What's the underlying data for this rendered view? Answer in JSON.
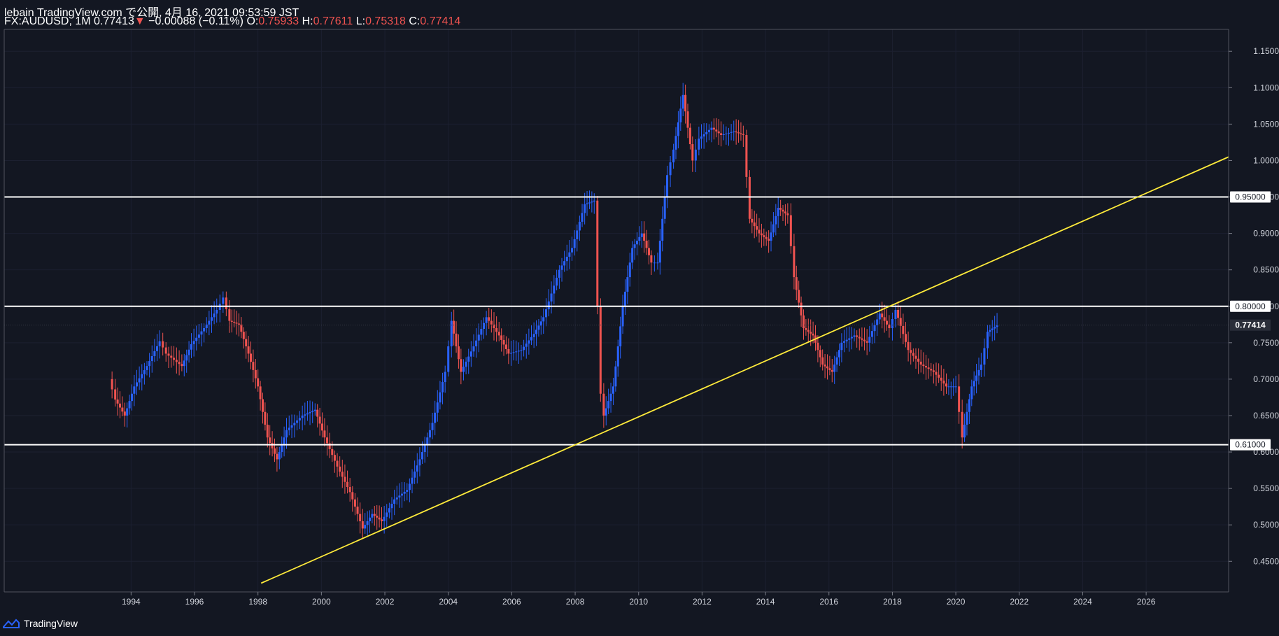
{
  "header": {
    "publisher": "lebain TradingView.com で公開, 4月 16, 2021 09:53:59 JST",
    "symbol": "FX:AUDUSD, 1M",
    "last": "0.77413",
    "change_arrow": "▼",
    "change": "−0.00088 (−0.11%)",
    "o_label": "O:",
    "o_value": "0.75933",
    "h_label": "H:",
    "h_value": "0.77611",
    "l_label": "L:",
    "l_value": "0.75318",
    "c_label": "C:",
    "c_value": "0.77414"
  },
  "footer": {
    "brand": "TradingView",
    "logo_icon": "tradingview-logo-icon"
  },
  "colors": {
    "background": "#131722",
    "up": "#2962ff",
    "down": "#ef5350",
    "axis_text": "#d1d4dc",
    "level_line": "#ffffff",
    "trend_line": "#ffeb3b"
  },
  "chart_data": {
    "type": "candlestick",
    "interval": "1M",
    "symbol": "FX:AUDUSD",
    "x_ticks": [
      "1994",
      "1996",
      "1998",
      "2000",
      "2002",
      "2004",
      "2006",
      "2008",
      "2010",
      "2012",
      "2014",
      "2016",
      "2018",
      "2020",
      "2022",
      "2024",
      "2026"
    ],
    "y_ticks": [
      "1.15000",
      "1.10000",
      "1.05000",
      "1.00000",
      "0.95000",
      "0.90000",
      "0.85000",
      "0.80000",
      "0.75000",
      "0.70000",
      "0.65000",
      "0.60000",
      "0.55000",
      "0.50000",
      "0.45000"
    ],
    "xlim": [
      1990.0,
      2028.6
    ],
    "ylim": [
      0.408,
      1.18
    ],
    "current_price_label": "0.77414",
    "current_price": 0.77414,
    "horizontal_levels": [
      {
        "value": 0.95,
        "label": "0.95000"
      },
      {
        "value": 0.8,
        "label": "0.80000"
      },
      {
        "value": 0.61,
        "label": "0.61000"
      }
    ],
    "trend_line": {
      "x1": 1998.1,
      "y1": 0.42,
      "x2": 2028.6,
      "y2": 1.005
    },
    "close_path": [
      [
        1993.3,
        0.7
      ],
      [
        1993.5,
        0.672
      ],
      [
        1993.8,
        0.65
      ],
      [
        1994.1,
        0.69
      ],
      [
        1994.5,
        0.718
      ],
      [
        1994.9,
        0.752
      ],
      [
        1995.1,
        0.735
      ],
      [
        1995.6,
        0.718
      ],
      [
        1995.9,
        0.748
      ],
      [
        1996.3,
        0.77
      ],
      [
        1996.7,
        0.795
      ],
      [
        1996.9,
        0.812
      ],
      [
        1997.1,
        0.78
      ],
      [
        1997.4,
        0.775
      ],
      [
        1997.7,
        0.735
      ],
      [
        1998.0,
        0.69
      ],
      [
        1998.3,
        0.62
      ],
      [
        1998.6,
        0.59
      ],
      [
        1998.9,
        0.63
      ],
      [
        1999.4,
        0.65
      ],
      [
        1999.8,
        0.658
      ],
      [
        2000.1,
        0.62
      ],
      [
        2000.5,
        0.58
      ],
      [
        2000.9,
        0.545
      ],
      [
        2001.3,
        0.495
      ],
      [
        2001.6,
        0.515
      ],
      [
        2001.9,
        0.505
      ],
      [
        2002.3,
        0.535
      ],
      [
        2002.7,
        0.548
      ],
      [
        2003.1,
        0.59
      ],
      [
        2003.5,
        0.64
      ],
      [
        2003.9,
        0.71
      ],
      [
        2004.1,
        0.78
      ],
      [
        2004.4,
        0.71
      ],
      [
        2004.8,
        0.745
      ],
      [
        2005.2,
        0.785
      ],
      [
        2005.6,
        0.76
      ],
      [
        2005.9,
        0.735
      ],
      [
        2006.3,
        0.74
      ],
      [
        2006.7,
        0.762
      ],
      [
        2007.0,
        0.785
      ],
      [
        2007.5,
        0.85
      ],
      [
        2007.9,
        0.88
      ],
      [
        2008.3,
        0.94
      ],
      [
        2008.6,
        0.945
      ],
      [
        2008.7,
        0.8
      ],
      [
        2008.8,
        0.68
      ],
      [
        2008.9,
        0.65
      ],
      [
        2009.2,
        0.69
      ],
      [
        2009.5,
        0.8
      ],
      [
        2009.8,
        0.88
      ],
      [
        2010.1,
        0.9
      ],
      [
        2010.4,
        0.86
      ],
      [
        2010.6,
        0.86
      ],
      [
        2010.9,
        0.98
      ],
      [
        2011.1,
        1.015
      ],
      [
        2011.4,
        1.09
      ],
      [
        2011.7,
        1.0
      ],
      [
        2011.9,
        1.03
      ],
      [
        2012.3,
        1.045
      ],
      [
        2012.6,
        1.035
      ],
      [
        2013.0,
        1.04
      ],
      [
        2013.3,
        1.035
      ],
      [
        2013.5,
        0.92
      ],
      [
        2013.8,
        0.9
      ],
      [
        2014.1,
        0.89
      ],
      [
        2014.4,
        0.935
      ],
      [
        2014.7,
        0.925
      ],
      [
        2014.9,
        0.84
      ],
      [
        2015.2,
        0.77
      ],
      [
        2015.5,
        0.76
      ],
      [
        2015.8,
        0.72
      ],
      [
        2016.1,
        0.71
      ],
      [
        2016.4,
        0.75
      ],
      [
        2016.8,
        0.76
      ],
      [
        2017.2,
        0.75
      ],
      [
        2017.6,
        0.79
      ],
      [
        2017.9,
        0.77
      ],
      [
        2018.1,
        0.795
      ],
      [
        2018.5,
        0.74
      ],
      [
        2018.9,
        0.72
      ],
      [
        2019.3,
        0.71
      ],
      [
        2019.7,
        0.69
      ],
      [
        2020.0,
        0.69
      ],
      [
        2020.2,
        0.62
      ],
      [
        2020.5,
        0.69
      ],
      [
        2020.8,
        0.72
      ],
      [
        2021.0,
        0.765
      ],
      [
        2021.3,
        0.774
      ]
    ]
  }
}
